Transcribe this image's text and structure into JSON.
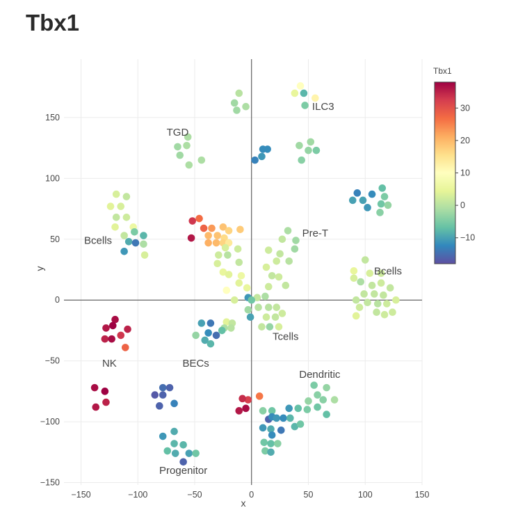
{
  "chart_data": {
    "type": "scatter",
    "title": "Tbx1",
    "xlabel": "x",
    "ylabel": "y",
    "xlim": [
      -165,
      150
    ],
    "ylim": [
      -152,
      198
    ],
    "xticks": [
      -150,
      -100,
      -50,
      0,
      50,
      100,
      150
    ],
    "yticks": [
      -150,
      -100,
      -50,
      0,
      50,
      100,
      150
    ],
    "xtick_labels": [
      "−150",
      "−100",
      "−50",
      "0",
      "50",
      "100",
      "150"
    ],
    "ytick_labels": [
      "−150",
      "−100",
      "−50",
      "0",
      "50",
      "100",
      "150"
    ],
    "grid": true,
    "zero_lines": true,
    "colorscale": {
      "name": "Spectral",
      "title": "Tbx1",
      "range": [
        -18,
        38
      ],
      "ticks": [
        30,
        20,
        10,
        0,
        -10
      ],
      "tick_labels": [
        "30",
        "20",
        "10",
        "0",
        "−10"
      ],
      "stops": [
        [
          "0",
          "#5e4fa2"
        ],
        [
          "0.1",
          "#3288bd"
        ],
        [
          "0.2",
          "#66c2a5"
        ],
        [
          "0.3",
          "#abdda4"
        ],
        [
          "0.4",
          "#e6f598"
        ],
        [
          "0.5",
          "#ffffbf"
        ],
        [
          "0.6",
          "#fee08b"
        ],
        [
          "0.7",
          "#fdae61"
        ],
        [
          "0.8",
          "#f46d43"
        ],
        [
          "0.9",
          "#d53e4f"
        ],
        [
          "1",
          "#9e0142"
        ]
      ]
    },
    "annotations": [
      {
        "text": "ILC3",
        "x": 63,
        "y": 159
      },
      {
        "text": "TGD",
        "x": -65,
        "y": 138
      },
      {
        "text": "Pre-T",
        "x": 56,
        "y": 55
      },
      {
        "text": "Bcells",
        "x": -135,
        "y": 49
      },
      {
        "text": "Bcells",
        "x": 120,
        "y": 24
      },
      {
        "text": "Tcells",
        "x": 30,
        "y": -30
      },
      {
        "text": "NK",
        "x": -125,
        "y": -52
      },
      {
        "text": "BECs",
        "x": -49,
        "y": -52
      },
      {
        "text": "Dendritic",
        "x": 60,
        "y": -61
      },
      {
        "text": "Progenitor",
        "x": -60,
        "y": -140
      }
    ],
    "points": [
      {
        "x": -11,
        "y": 170,
        "v": 0
      },
      {
        "x": -15,
        "y": 162,
        "v": -2
      },
      {
        "x": -13,
        "y": 156,
        "v": -2
      },
      {
        "x": -5,
        "y": 159,
        "v": -1
      },
      {
        "x": 43,
        "y": 176,
        "v": 10
      },
      {
        "x": 38,
        "y": 170,
        "v": 5
      },
      {
        "x": 46,
        "y": 170,
        "v": -8
      },
      {
        "x": 47,
        "y": 160,
        "v": -5
      },
      {
        "x": 56,
        "y": 166,
        "v": 12
      },
      {
        "x": -56,
        "y": 134,
        "v": -1
      },
      {
        "x": -65,
        "y": 126,
        "v": -2
      },
      {
        "x": -57,
        "y": 127,
        "v": -1
      },
      {
        "x": -63,
        "y": 119,
        "v": -2
      },
      {
        "x": -55,
        "y": 111,
        "v": -1
      },
      {
        "x": -44,
        "y": 115,
        "v": -1
      },
      {
        "x": 3,
        "y": 115,
        "v": -13
      },
      {
        "x": 10,
        "y": 124,
        "v": -12
      },
      {
        "x": 14,
        "y": 124,
        "v": -12
      },
      {
        "x": 9,
        "y": 118,
        "v": -11
      },
      {
        "x": 42,
        "y": 127,
        "v": -2
      },
      {
        "x": 52,
        "y": 130,
        "v": -2
      },
      {
        "x": 50,
        "y": 123,
        "v": -3
      },
      {
        "x": 57,
        "y": 123,
        "v": -5
      },
      {
        "x": 44,
        "y": 115,
        "v": -4
      },
      {
        "x": 93,
        "y": 88,
        "v": -13
      },
      {
        "x": 106,
        "y": 87,
        "v": -12
      },
      {
        "x": 115,
        "y": 92,
        "v": -7
      },
      {
        "x": 117,
        "y": 85,
        "v": -5
      },
      {
        "x": 89,
        "y": 82,
        "v": -10
      },
      {
        "x": 98,
        "y": 82,
        "v": -10
      },
      {
        "x": 114,
        "y": 79,
        "v": -6
      },
      {
        "x": 120,
        "y": 78,
        "v": -3
      },
      {
        "x": 102,
        "y": 76,
        "v": -11
      },
      {
        "x": 113,
        "y": 72,
        "v": -4
      },
      {
        "x": -119,
        "y": 87,
        "v": 3
      },
      {
        "x": -110,
        "y": 85,
        "v": 1
      },
      {
        "x": -124,
        "y": 77,
        "v": 4
      },
      {
        "x": -115,
        "y": 77,
        "v": 3
      },
      {
        "x": -119,
        "y": 68,
        "v": 1
      },
      {
        "x": -110,
        "y": 68,
        "v": 2
      },
      {
        "x": -104,
        "y": 60,
        "v": 6
      },
      {
        "x": -120,
        "y": 60,
        "v": 4
      },
      {
        "x": -112,
        "y": 53,
        "v": 1
      },
      {
        "x": -103,
        "y": 56,
        "v": -5
      },
      {
        "x": -95,
        "y": 53,
        "v": -8
      },
      {
        "x": -108,
        "y": 48,
        "v": -9
      },
      {
        "x": -102,
        "y": 47,
        "v": -14
      },
      {
        "x": -95,
        "y": 46,
        "v": -1
      },
      {
        "x": -112,
        "y": 40,
        "v": -11
      },
      {
        "x": -94,
        "y": 37,
        "v": 3
      },
      {
        "x": -46,
        "y": 67,
        "v": 27
      },
      {
        "x": -52,
        "y": 65,
        "v": 33
      },
      {
        "x": -42,
        "y": 59,
        "v": 28
      },
      {
        "x": -35,
        "y": 59,
        "v": 23
      },
      {
        "x": -25,
        "y": 60,
        "v": 19
      },
      {
        "x": -20,
        "y": 57,
        "v": 17
      },
      {
        "x": -10,
        "y": 58,
        "v": 18
      },
      {
        "x": -38,
        "y": 53,
        "v": 20
      },
      {
        "x": -30,
        "y": 53,
        "v": 19
      },
      {
        "x": -24,
        "y": 51,
        "v": 16
      },
      {
        "x": -53,
        "y": 51,
        "v": 36
      },
      {
        "x": -38,
        "y": 47,
        "v": 21
      },
      {
        "x": -31,
        "y": 47,
        "v": 20
      },
      {
        "x": -25,
        "y": 47,
        "v": 17
      },
      {
        "x": -20,
        "y": 47,
        "v": 14
      },
      {
        "x": -23,
        "y": 43,
        "v": 3
      },
      {
        "x": -12,
        "y": 42,
        "v": 2
      },
      {
        "x": -29,
        "y": 37,
        "v": 2
      },
      {
        "x": -21,
        "y": 37,
        "v": 0
      },
      {
        "x": -11,
        "y": 31,
        "v": 1
      },
      {
        "x": -30,
        "y": 30,
        "v": 3
      },
      {
        "x": -25,
        "y": 23,
        "v": 5
      },
      {
        "x": -20,
        "y": 21,
        "v": 4
      },
      {
        "x": -9,
        "y": 20,
        "v": 6
      },
      {
        "x": -11,
        "y": 14,
        "v": 4
      },
      {
        "x": -4,
        "y": 10,
        "v": 5
      },
      {
        "x": -22,
        "y": 8,
        "v": 10
      },
      {
        "x": -15,
        "y": 0,
        "v": 3
      },
      {
        "x": -3,
        "y": 2,
        "v": -11
      },
      {
        "x": 32,
        "y": 57,
        "v": -1
      },
      {
        "x": 27,
        "y": 50,
        "v": 1
      },
      {
        "x": 39,
        "y": 49,
        "v": -2
      },
      {
        "x": 15,
        "y": 41,
        "v": 2
      },
      {
        "x": 25,
        "y": 38,
        "v": 1
      },
      {
        "x": 38,
        "y": 42,
        "v": -2
      },
      {
        "x": 22,
        "y": 32,
        "v": 2
      },
      {
        "x": 33,
        "y": 32,
        "v": 0
      },
      {
        "x": 13,
        "y": 27,
        "v": 3
      },
      {
        "x": 18,
        "y": 20,
        "v": 1
      },
      {
        "x": 24,
        "y": 19,
        "v": 2
      },
      {
        "x": 30,
        "y": 12,
        "v": 1
      },
      {
        "x": 15,
        "y": 11,
        "v": 2
      },
      {
        "x": 5,
        "y": 2,
        "v": 1
      },
      {
        "x": 12,
        "y": 3,
        "v": -1
      },
      {
        "x": 0,
        "y": 0,
        "v": -6
      },
      {
        "x": 6,
        "y": -6,
        "v": 0
      },
      {
        "x": 15,
        "y": -6,
        "v": 0
      },
      {
        "x": 22,
        "y": -6,
        "v": 1
      },
      {
        "x": -3,
        "y": -8,
        "v": -2
      },
      {
        "x": 13,
        "y": -14,
        "v": 2
      },
      {
        "x": 21,
        "y": -14,
        "v": 1
      },
      {
        "x": 27,
        "y": -11,
        "v": 2
      },
      {
        "x": 9,
        "y": -22,
        "v": 1
      },
      {
        "x": 16,
        "y": -22,
        "v": -3
      },
      {
        "x": 24,
        "y": -22,
        "v": 3
      },
      {
        "x": -1,
        "y": -14,
        "v": -10
      },
      {
        "x": 90,
        "y": 24,
        "v": 5
      },
      {
        "x": 100,
        "y": 33,
        "v": 1
      },
      {
        "x": 104,
        "y": 22,
        "v": 3
      },
      {
        "x": 114,
        "y": 22,
        "v": 2
      },
      {
        "x": 90,
        "y": 18,
        "v": 3
      },
      {
        "x": 96,
        "y": 15,
        "v": -1
      },
      {
        "x": 106,
        "y": 12,
        "v": 1
      },
      {
        "x": 114,
        "y": 14,
        "v": 2
      },
      {
        "x": 122,
        "y": 10,
        "v": 1
      },
      {
        "x": 99,
        "y": 5,
        "v": 1
      },
      {
        "x": 108,
        "y": 5,
        "v": 1
      },
      {
        "x": 116,
        "y": 4,
        "v": 1
      },
      {
        "x": 127,
        "y": 0,
        "v": 3
      },
      {
        "x": 92,
        "y": 0,
        "v": 1
      },
      {
        "x": 102,
        "y": -2,
        "v": 1
      },
      {
        "x": 111,
        "y": -3,
        "v": 0
      },
      {
        "x": 119,
        "y": -3,
        "v": 2
      },
      {
        "x": 95,
        "y": -6,
        "v": 2
      },
      {
        "x": 110,
        "y": -10,
        "v": 1
      },
      {
        "x": 124,
        "y": -10,
        "v": 2
      },
      {
        "x": 117,
        "y": -12,
        "v": 2
      },
      {
        "x": 92,
        "y": -13,
        "v": 4
      },
      {
        "x": -120,
        "y": -16,
        "v": 37
      },
      {
        "x": -128,
        "y": -23,
        "v": 36
      },
      {
        "x": -109,
        "y": -24,
        "v": 35
      },
      {
        "x": -122,
        "y": -21,
        "v": 38
      },
      {
        "x": -115,
        "y": -29,
        "v": 33
      },
      {
        "x": -129,
        "y": -32,
        "v": 35
      },
      {
        "x": -123,
        "y": -32,
        "v": 37
      },
      {
        "x": -111,
        "y": -39,
        "v": 28
      },
      {
        "x": -44,
        "y": -19,
        "v": -10
      },
      {
        "x": -36,
        "y": -19,
        "v": -14
      },
      {
        "x": -38,
        "y": -27,
        "v": -12
      },
      {
        "x": -31,
        "y": -29,
        "v": -15
      },
      {
        "x": -22,
        "y": -18,
        "v": 4
      },
      {
        "x": -17,
        "y": -19,
        "v": 1
      },
      {
        "x": -24,
        "y": -23,
        "v": -1
      },
      {
        "x": -49,
        "y": -29,
        "v": -3
      },
      {
        "x": -41,
        "y": -33,
        "v": -9
      },
      {
        "x": -36,
        "y": -36,
        "v": -8
      },
      {
        "x": -18,
        "y": -23,
        "v": 0
      },
      {
        "x": -26,
        "y": -25,
        "v": -7
      },
      {
        "x": 7,
        "y": -79,
        "v": 26
      },
      {
        "x": -3,
        "y": -82,
        "v": 32
      },
      {
        "x": -8,
        "y": -81,
        "v": 34
      },
      {
        "x": -5,
        "y": -89,
        "v": 37
      },
      {
        "x": -11,
        "y": -91,
        "v": 36
      },
      {
        "x": 10,
        "y": -91,
        "v": -4
      },
      {
        "x": 18,
        "y": -91,
        "v": -6
      },
      {
        "x": 33,
        "y": -89,
        "v": -11
      },
      {
        "x": 41,
        "y": -89,
        "v": -7
      },
      {
        "x": 50,
        "y": -83,
        "v": -3
      },
      {
        "x": 55,
        "y": -70,
        "v": -5
      },
      {
        "x": 58,
        "y": -78,
        "v": -4
      },
      {
        "x": 66,
        "y": -72,
        "v": -3
      },
      {
        "x": 63,
        "y": -82,
        "v": -4
      },
      {
        "x": 58,
        "y": -88,
        "v": -6
      },
      {
        "x": 73,
        "y": -82,
        "v": -1
      },
      {
        "x": 49,
        "y": -90,
        "v": -5
      },
      {
        "x": 66,
        "y": -94,
        "v": -7
      },
      {
        "x": 15,
        "y": -98,
        "v": -16
      },
      {
        "x": 18,
        "y": -96,
        "v": -12
      },
      {
        "x": 22,
        "y": -97,
        "v": -11
      },
      {
        "x": 28,
        "y": -97,
        "v": -12
      },
      {
        "x": 34,
        "y": -97,
        "v": -8
      },
      {
        "x": 10,
        "y": -105,
        "v": -11
      },
      {
        "x": 17,
        "y": -106,
        "v": -9
      },
      {
        "x": 26,
        "y": -107,
        "v": -14
      },
      {
        "x": 38,
        "y": -104,
        "v": -8
      },
      {
        "x": 43,
        "y": -102,
        "v": -6
      },
      {
        "x": 18,
        "y": -111,
        "v": -12
      },
      {
        "x": 11,
        "y": -117,
        "v": -6
      },
      {
        "x": 17,
        "y": -118,
        "v": -7
      },
      {
        "x": 23,
        "y": -118,
        "v": -4
      },
      {
        "x": 12,
        "y": -124,
        "v": -5
      },
      {
        "x": 17,
        "y": -125,
        "v": -9
      },
      {
        "x": -138,
        "y": -72,
        "v": 37
      },
      {
        "x": -129,
        "y": -75,
        "v": 38
      },
      {
        "x": -128,
        "y": -84,
        "v": 35
      },
      {
        "x": -137,
        "y": -88,
        "v": 36
      },
      {
        "x": -78,
        "y": -72,
        "v": -15
      },
      {
        "x": -72,
        "y": -72,
        "v": -16
      },
      {
        "x": -85,
        "y": -78,
        "v": -17
      },
      {
        "x": -78,
        "y": -78,
        "v": -16
      },
      {
        "x": -81,
        "y": -87,
        "v": -16
      },
      {
        "x": -68,
        "y": -85,
        "v": -13
      },
      {
        "x": -68,
        "y": -108,
        "v": -9
      },
      {
        "x": -78,
        "y": -112,
        "v": -11
      },
      {
        "x": -68,
        "y": -118,
        "v": -8
      },
      {
        "x": -60,
        "y": -119,
        "v": -8
      },
      {
        "x": -74,
        "y": -124,
        "v": -7
      },
      {
        "x": -67,
        "y": -126,
        "v": -9
      },
      {
        "x": -55,
        "y": -126,
        "v": -10
      },
      {
        "x": -49,
        "y": -126,
        "v": -6
      },
      {
        "x": -60,
        "y": -133,
        "v": -16
      }
    ]
  }
}
